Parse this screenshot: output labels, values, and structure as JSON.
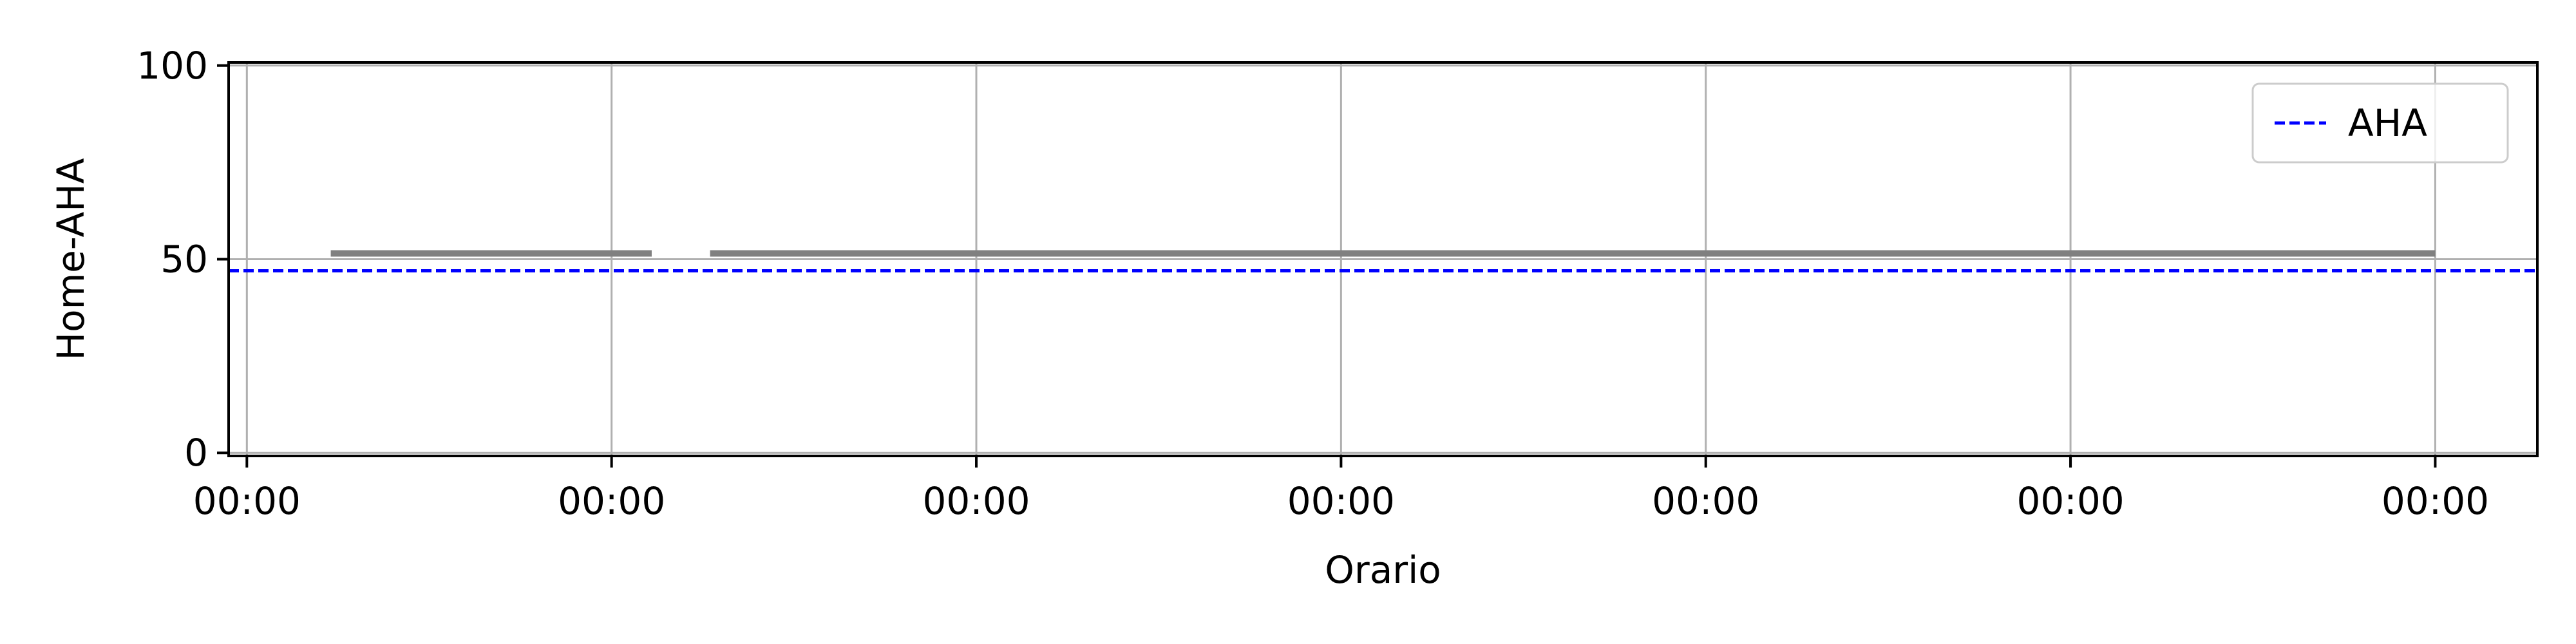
{
  "chart_data": {
    "type": "line",
    "title": "",
    "xlabel": "Orario",
    "ylabel": "Home-AHA",
    "ylim": [
      0,
      100
    ],
    "yticks": [
      0,
      50,
      100
    ],
    "xticks": [
      0,
      1,
      2,
      3,
      4,
      5,
      6
    ],
    "xtick_labels": [
      "00:00",
      "00:00",
      "00:00",
      "00:00",
      "00:00",
      "00:00",
      "00:00"
    ],
    "xlim": [
      -0.05,
      6.28
    ],
    "grid": true,
    "legend_position": "top-right",
    "series": [
      {
        "type": "line",
        "color": "#808080",
        "segments": [
          {
            "x": [
              0.23,
              1.11
            ],
            "y": [
              51.5,
              51.5
            ]
          },
          {
            "x": [
              1.27,
              6.0
            ],
            "y": [
              51.5,
              51.5
            ]
          }
        ]
      }
    ],
    "reference_lines": [
      {
        "name": "AHA",
        "y": 47,
        "color": "#0000ff",
        "style": "dashed"
      }
    ]
  }
}
